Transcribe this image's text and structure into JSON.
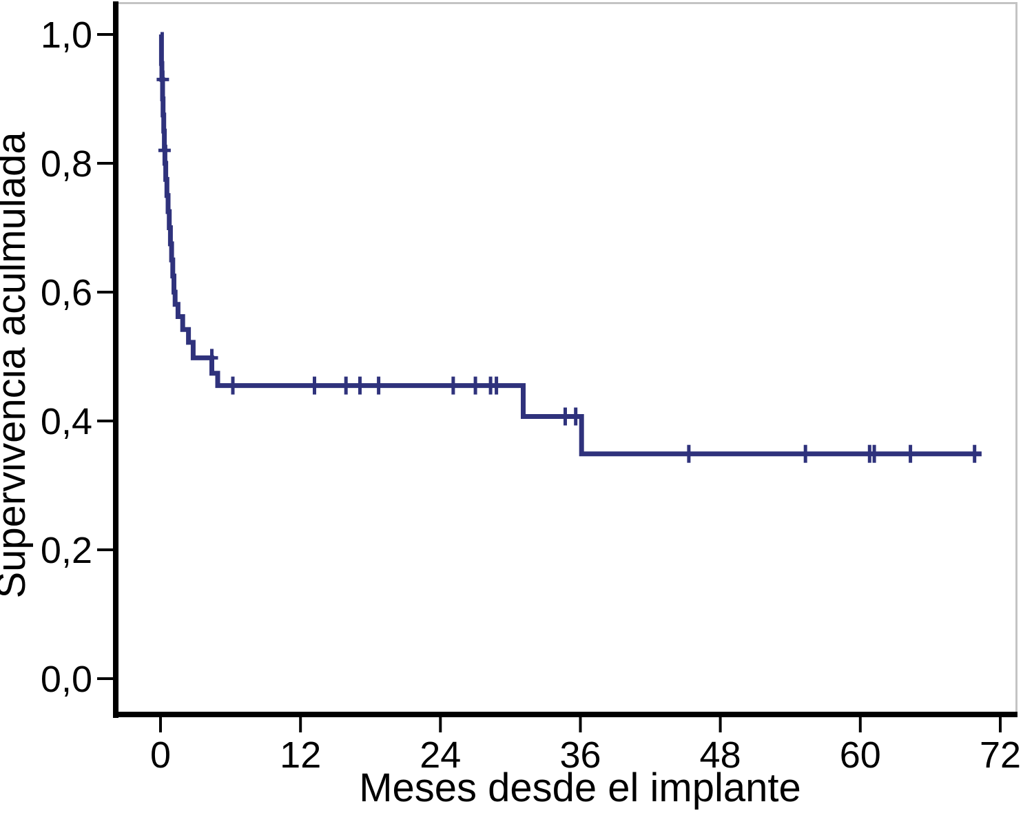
{
  "figure": {
    "background": "#ffffff"
  },
  "chart_data": {
    "type": "line",
    "subtype": "kaplan-meier-step-function",
    "title": "",
    "xlabel": "Meses desde el implante",
    "ylabel": "Supervivencia aculmulada",
    "x_ticks": {
      "values": [
        0,
        12,
        24,
        36,
        48,
        60,
        72
      ],
      "labels": [
        "0",
        "12",
        "24",
        "36",
        "48",
        "60",
        "72"
      ]
    },
    "y_ticks": {
      "values": [
        1.0,
        0.8,
        0.6,
        0.4,
        0.2,
        0.0
      ],
      "labels": [
        "1,0",
        "0,8",
        "0,6",
        "0,4",
        "0,2",
        "0,0"
      ]
    },
    "xlim": [
      -4,
      73.5
    ],
    "ylim": [
      -0.05,
      1.05
    ],
    "grid": false,
    "legend": "none",
    "axis_color": "#000000",
    "frame_color": "#c4c4c4",
    "series": [
      {
        "name": "Supervivencia",
        "color": "#2f327c",
        "start": [
          0,
          1.0
        ],
        "steps": [
          [
            0.08,
            0.955
          ],
          [
            0.12,
            0.93
          ],
          [
            0.18,
            0.9
          ],
          [
            0.22,
            0.875
          ],
          [
            0.28,
            0.85
          ],
          [
            0.33,
            0.825
          ],
          [
            0.38,
            0.8
          ],
          [
            0.45,
            0.775
          ],
          [
            0.55,
            0.75
          ],
          [
            0.65,
            0.725
          ],
          [
            0.75,
            0.7
          ],
          [
            0.85,
            0.675
          ],
          [
            0.95,
            0.65
          ],
          [
            1.05,
            0.625
          ],
          [
            1.15,
            0.6
          ],
          [
            1.25,
            0.581
          ],
          [
            1.5,
            0.562
          ],
          [
            1.9,
            0.542
          ],
          [
            2.4,
            0.522
          ],
          [
            2.8,
            0.498
          ],
          [
            4.4,
            0.474
          ],
          [
            4.9,
            0.455
          ],
          [
            31.1,
            0.407
          ],
          [
            36.1,
            0.349
          ]
        ],
        "end_time": 70.4,
        "censored": [
          [
            0.2,
            0.93
          ],
          [
            0.35,
            0.82
          ],
          [
            4.4,
            0.498
          ],
          [
            6.2,
            0.455
          ],
          [
            13.2,
            0.455
          ],
          [
            15.9,
            0.455
          ],
          [
            17.1,
            0.455
          ],
          [
            18.7,
            0.455
          ],
          [
            25.1,
            0.455
          ],
          [
            27.0,
            0.455
          ],
          [
            28.3,
            0.455
          ],
          [
            28.8,
            0.455
          ],
          [
            34.7,
            0.407
          ],
          [
            35.6,
            0.407
          ],
          [
            45.3,
            0.349
          ],
          [
            55.3,
            0.349
          ],
          [
            60.8,
            0.349
          ],
          [
            61.2,
            0.349
          ],
          [
            64.3,
            0.349
          ],
          [
            69.8,
            0.349
          ]
        ]
      }
    ]
  }
}
